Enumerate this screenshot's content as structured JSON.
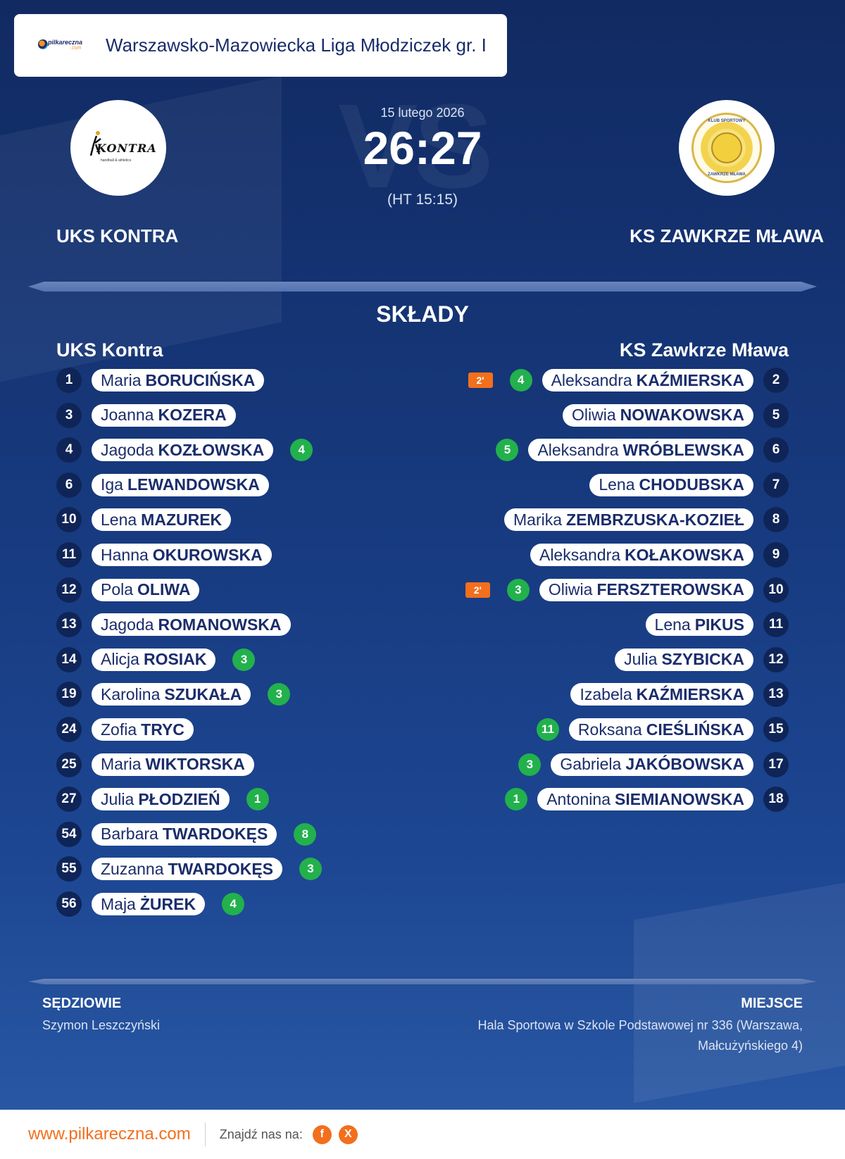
{
  "league": {
    "title": "Warszawsko-Mazowiecka Liga Młodziczek gr. I",
    "brand": "pilkareczna",
    "brand_sub": ".com"
  },
  "match": {
    "date": "15 lutego 2026",
    "score": "26:27",
    "halftime": "(HT 15:15)",
    "watermark": "VS"
  },
  "home": {
    "name": "UKS KONTRA",
    "squad_title": "UKS Kontra",
    "logo_word": "KONTRA",
    "logo_tag": "handball & athletics",
    "logo_icon": "handball-player-icon"
  },
  "away": {
    "name": "KS ZAWKRZE MŁAWA",
    "squad_title": "KS Zawkrze Mława",
    "logo_ring_top": "KLUB SPORTOWY",
    "logo_ring_bottom": "ZAWKRZE MŁAWA"
  },
  "squads_title": "SKŁADY",
  "home_players": [
    {
      "num": "1",
      "first": "Maria",
      "last": "BORUCIŃSKA",
      "goals": null
    },
    {
      "num": "3",
      "first": "Joanna",
      "last": "KOZERA",
      "goals": null
    },
    {
      "num": "4",
      "first": "Jagoda",
      "last": "KOZŁOWSKA",
      "goals": "4"
    },
    {
      "num": "6",
      "first": "Iga",
      "last": "LEWANDOWSKA",
      "goals": null
    },
    {
      "num": "10",
      "first": "Lena",
      "last": "MAZUREK",
      "goals": null
    },
    {
      "num": "11",
      "first": "Hanna",
      "last": "OKUROWSKA",
      "goals": null
    },
    {
      "num": "12",
      "first": "Pola",
      "last": "OLIWA",
      "goals": null
    },
    {
      "num": "13",
      "first": "Jagoda",
      "last": "ROMANOWSKA",
      "goals": null
    },
    {
      "num": "14",
      "first": "Alicja",
      "last": "ROSIAK",
      "goals": "3"
    },
    {
      "num": "19",
      "first": "Karolina",
      "last": "SZUKAŁA",
      "goals": "3"
    },
    {
      "num": "24",
      "first": "Zofia",
      "last": "TRYC",
      "goals": null
    },
    {
      "num": "25",
      "first": "Maria",
      "last": "WIKTORSKA",
      "goals": null
    },
    {
      "num": "27",
      "first": "Julia",
      "last": "PŁODZIEŃ",
      "goals": "1"
    },
    {
      "num": "54",
      "first": "Barbara",
      "last": "TWARDOKĘS",
      "goals": "8"
    },
    {
      "num": "55",
      "first": "Zuzanna",
      "last": "TWARDOKĘS",
      "goals": "3"
    },
    {
      "num": "56",
      "first": "Maja",
      "last": "ŻUREK",
      "goals": "4"
    }
  ],
  "away_players": [
    {
      "num": "2",
      "first": "Aleksandra",
      "last": "KAŹMIERSKA",
      "goals": "4",
      "susp": "2'"
    },
    {
      "num": "5",
      "first": "Oliwia",
      "last": "NOWAKOWSKA",
      "goals": null,
      "susp": null
    },
    {
      "num": "6",
      "first": "Aleksandra",
      "last": "WRÓBLEWSKA",
      "goals": "5",
      "susp": null
    },
    {
      "num": "7",
      "first": "Lena",
      "last": "CHODUBSKA",
      "goals": null,
      "susp": null
    },
    {
      "num": "8",
      "first": "Marika",
      "last": "ZEMBRZUSKA-KOZIEŁ",
      "goals": null,
      "susp": null
    },
    {
      "num": "9",
      "first": "Aleksandra",
      "last": "KOŁAKOWSKA",
      "goals": null,
      "susp": null
    },
    {
      "num": "10",
      "first": "Oliwia",
      "last": "FERSZTEROWSKA",
      "goals": "3",
      "susp": "2'"
    },
    {
      "num": "11",
      "first": "Lena",
      "last": "PIKUS",
      "goals": null,
      "susp": null
    },
    {
      "num": "12",
      "first": "Julia",
      "last": "SZYBICKA",
      "goals": null,
      "susp": null
    },
    {
      "num": "13",
      "first": "Izabela",
      "last": "KAŹMIERSKA",
      "goals": null,
      "susp": null
    },
    {
      "num": "15",
      "first": "Roksana",
      "last": "CIEŚLIŃSKA",
      "goals": "11",
      "susp": null
    },
    {
      "num": "17",
      "first": "Gabriela",
      "last": "JAKÓBOWSKA",
      "goals": "3",
      "susp": null
    },
    {
      "num": "18",
      "first": "Antonina",
      "last": "SIEMIANOWSKA",
      "goals": "1",
      "susp": null
    }
  ],
  "referees": {
    "heading": "SĘDZIOWIE",
    "names": "Szymon Leszczyński"
  },
  "venue": {
    "heading": "MIEJSCE",
    "text": "Hala Sportowa w Szkole Podstawowej nr 336 (Warszawa, Małcużyńskiego 4)"
  },
  "footer": {
    "url": "www.pilkareczna.com",
    "find_label": "Znajdź nas na:",
    "social": [
      {
        "icon": "facebook-icon",
        "glyph": "f"
      },
      {
        "icon": "x-icon",
        "glyph": "X"
      }
    ]
  },
  "colors": {
    "accent": "#f26f1d",
    "goal": "#22b14c",
    "navy": "#1a2c6b"
  }
}
